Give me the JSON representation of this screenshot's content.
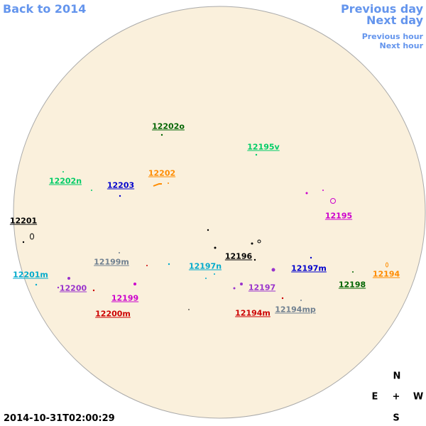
{
  "nav": {
    "back": "Back to 2014",
    "previous_day": "Previous day",
    "next_day": "Next day",
    "previous_hour": "Previous hour",
    "next_hour": "Next hour"
  },
  "timestamp": "2014-10-31T02:00:29",
  "compass": {
    "north": "N",
    "east": "E",
    "center": "+",
    "west": "W",
    "south": "S"
  },
  "regions": [
    {
      "label": "12202o",
      "color": "#006400"
    },
    {
      "label": "12195v",
      "color": "#00cc66"
    },
    {
      "label": "12202n",
      "color": "#00cc66"
    },
    {
      "label": "12202",
      "color": "#ff8c00"
    },
    {
      "label": "12203",
      "color": "#0000cc"
    },
    {
      "label": "12201",
      "color": "#000000"
    },
    {
      "label": "12195",
      "color": "#cc00cc"
    },
    {
      "label": "12196",
      "color": "#000000"
    },
    {
      "label": "12199m",
      "color": "#708090"
    },
    {
      "label": "12197n",
      "color": "#00aacc"
    },
    {
      "label": "12201m",
      "color": "#00aacc"
    },
    {
      "label": "12197m",
      "color": "#0000cc"
    },
    {
      "label": "12194",
      "color": "#ff8c00"
    },
    {
      "label": "12200",
      "color": "#9933cc"
    },
    {
      "label": "12197",
      "color": "#9933cc"
    },
    {
      "label": "12198",
      "color": "#006400"
    },
    {
      "label": "12199",
      "color": "#cc00cc"
    },
    {
      "label": "12200m",
      "color": "#cc0000"
    },
    {
      "label": "12194m",
      "color": "#cc0000"
    },
    {
      "label": "12194mp",
      "color": "#708090"
    }
  ]
}
